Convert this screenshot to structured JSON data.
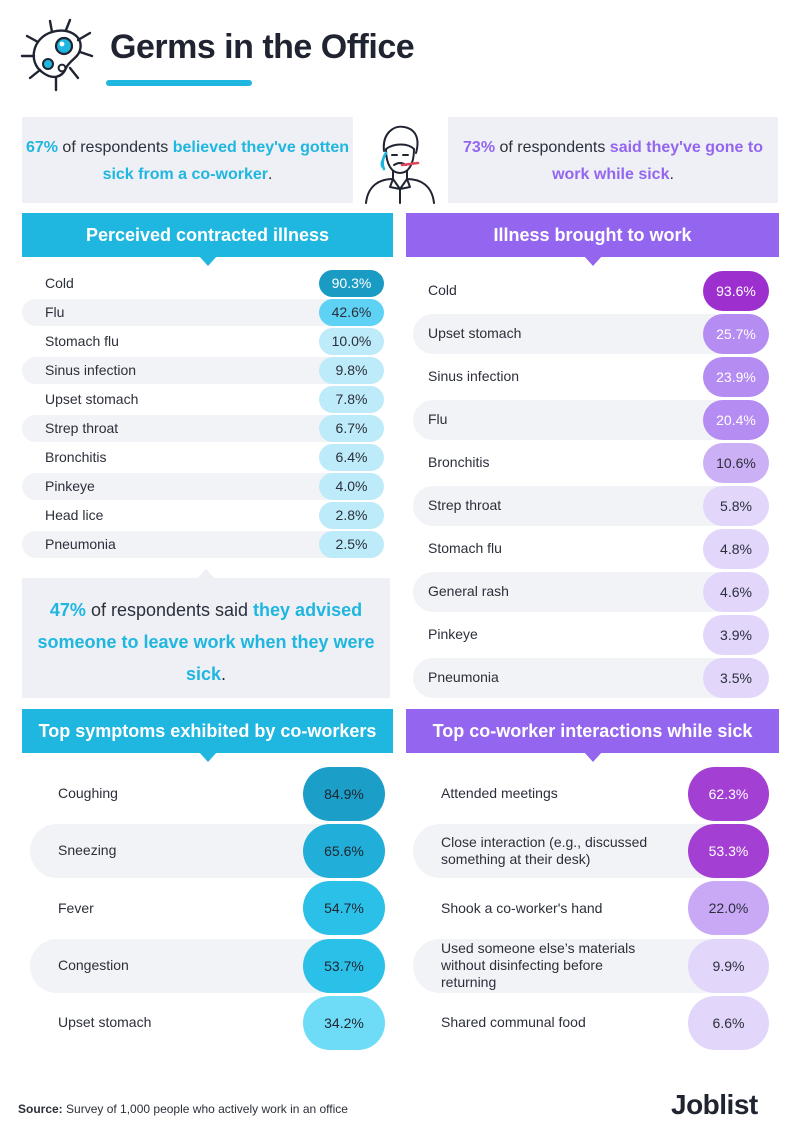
{
  "header": {
    "title": "Germs in the Office"
  },
  "stats": {
    "left": {
      "highlight_1": "67%",
      "text_1": " of respondents ",
      "highlight_2": "believed they've gotten sick from a co-worker",
      "text_2": "."
    },
    "right": {
      "highlight_1": "73%",
      "text_1": " of respondents ",
      "highlight_2": "said they've gone to work while sick",
      "text_2": "."
    },
    "middle": {
      "highlight_1": "47%",
      "text_1": " of respondents said ",
      "highlight_2": "they advised someone to leave work when they were sick",
      "text_2": "."
    }
  },
  "chart_data": [
    {
      "type": "table",
      "title": "Perceived contracted illness",
      "categories": [
        "Cold",
        "Flu",
        "Stomach flu",
        "Sinus infection",
        "Upset stomach",
        "Strep throat",
        "Bronchitis",
        "Pinkeye",
        "Head lice",
        "Pneumonia"
      ],
      "values": [
        90.3,
        42.6,
        10.0,
        9.8,
        7.8,
        6.7,
        6.4,
        4.0,
        2.8,
        2.5
      ],
      "labels": [
        "90.3%",
        "42.6%",
        "10.0%",
        "9.8%",
        "7.8%",
        "6.7%",
        "6.4%",
        "4.0%",
        "2.8%",
        "2.5%"
      ],
      "colors": [
        "#1a9bc4",
        "#5ed2f5",
        "#bdebfa",
        "#bdebfa",
        "#bdebfa",
        "#bdebfa",
        "#bdebfa",
        "#bdebfa",
        "#bdebfa",
        "#bdebfa"
      ]
    },
    {
      "type": "table",
      "title": "Illness brought to work",
      "categories": [
        "Cold",
        "Upset stomach",
        "Sinus infection",
        "Flu",
        "Bronchitis",
        "Strep throat",
        "Stomach flu",
        "General rash",
        "Pinkeye",
        "Pneumonia"
      ],
      "values": [
        93.6,
        25.7,
        23.9,
        20.4,
        10.6,
        5.8,
        4.8,
        4.6,
        3.9,
        3.5
      ],
      "labels": [
        "93.6%",
        "25.7%",
        "23.9%",
        "20.4%",
        "10.6%",
        "5.8%",
        "4.8%",
        "4.6%",
        "3.9%",
        "3.5%"
      ],
      "colors": [
        "#9d2fcf",
        "#b58cf2",
        "#b58cf2",
        "#b58cf2",
        "#cbb0f6",
        "#e2d6fb",
        "#e2d6fb",
        "#e2d6fb",
        "#e2d6fb",
        "#e2d6fb"
      ]
    },
    {
      "type": "table",
      "title": "Top symptoms exhibited by co-workers",
      "categories": [
        "Coughing",
        "Sneezing",
        "Fever",
        "Congestion",
        "Upset stomach"
      ],
      "values": [
        84.9,
        65.6,
        54.7,
        53.7,
        34.2
      ],
      "labels": [
        "84.9%",
        "65.6%",
        "54.7%",
        "53.7%",
        "34.2%"
      ],
      "colors": [
        "#1b9fc9",
        "#21aed8",
        "#2bc0e8",
        "#2bc0e8",
        "#6fdcf7"
      ]
    },
    {
      "type": "table",
      "title": "Top co-worker interactions while sick",
      "categories": [
        "Attended meetings",
        "Close interaction (e.g., discussed\nsomething at their desk)",
        "Shook a co-worker's hand",
        "Used someone else’s materials\nwithout disinfecting before\nreturning",
        "Shared communal food"
      ],
      "values": [
        62.3,
        53.3,
        22.0,
        9.9,
        6.6
      ],
      "labels": [
        "62.3%",
        "53.3%",
        "22.0%",
        "9.9%",
        "6.6%"
      ],
      "colors": [
        "#a43fd3",
        "#a43fd3",
        "#c9a8f6",
        "#e2d6fb",
        "#e2d6fb"
      ]
    }
  ],
  "footer": {
    "source_label": "Source:",
    "source_text": " Survey of 1,000 people who actively work in an office",
    "brand": "Joblist"
  },
  "icons": {
    "title_icon": "germ-icon",
    "stat_icon": "sick-person-icon"
  }
}
